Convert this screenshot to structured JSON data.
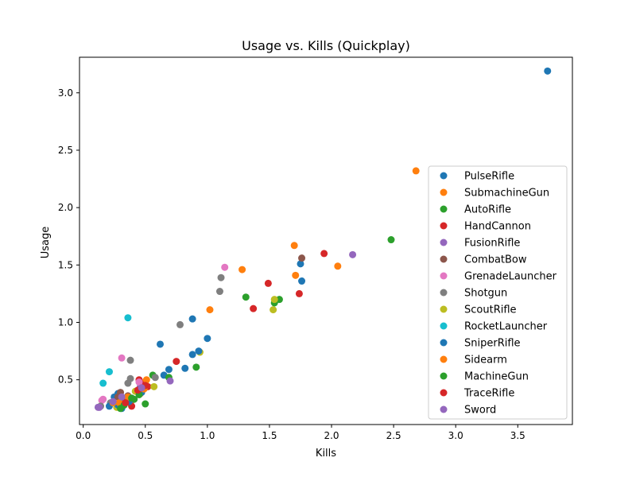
{
  "chart_data": {
    "type": "scatter",
    "title": "Usage vs. Kills (Quickplay)",
    "xlabel": "Kills",
    "ylabel": "Usage",
    "xlim": [
      -0.03,
      3.94
    ],
    "ylim": [
      0.11,
      3.31
    ],
    "xticks": [
      0.0,
      0.5,
      1.0,
      1.5,
      2.0,
      2.5,
      3.0,
      3.5
    ],
    "xtick_labels": [
      "0.0",
      "0.5",
      "1.0",
      "1.5",
      "2.0",
      "2.5",
      "3.0",
      "3.5"
    ],
    "yticks": [
      0.5,
      1.0,
      1.5,
      2.0,
      2.5,
      3.0
    ],
    "ytick_labels": [
      "0.5",
      "1.0",
      "1.5",
      "2.0",
      "2.5",
      "3.0"
    ],
    "grid": false,
    "legend_position": "lower-right",
    "series": [
      {
        "name": "PulseRifle",
        "color": "#1f77b4",
        "x": [
          3.74,
          1.76,
          1.75,
          1.0,
          0.88,
          0.62,
          0.69,
          0.65,
          0.25,
          0.28,
          0.3
        ],
        "y": [
          3.19,
          1.36,
          1.51,
          0.86,
          1.03,
          0.81,
          0.59,
          0.54,
          0.35,
          0.38,
          0.3
        ]
      },
      {
        "name": "SubmachineGun",
        "color": "#ff7f0e",
        "x": [
          2.68,
          1.7,
          1.71,
          2.05,
          1.28,
          1.02,
          0.5,
          0.46,
          0.33,
          0.38
        ],
        "y": [
          2.32,
          1.67,
          1.41,
          1.49,
          1.46,
          1.11,
          0.48,
          0.38,
          0.32,
          0.3
        ]
      },
      {
        "name": "AutoRifle",
        "color": "#2ca02c",
        "x": [
          2.48,
          1.58,
          1.54,
          1.31,
          0.91,
          0.69,
          0.56,
          0.41,
          0.5
        ],
        "y": [
          1.72,
          1.2,
          1.17,
          1.22,
          0.61,
          0.52,
          0.54,
          0.33,
          0.29
        ]
      },
      {
        "name": "HandCannon",
        "color": "#d62728",
        "x": [
          1.94,
          1.74,
          1.49,
          1.37,
          0.75,
          0.45,
          0.48,
          0.52,
          0.39
        ],
        "y": [
          1.6,
          1.25,
          1.34,
          1.12,
          0.66,
          0.5,
          0.46,
          0.44,
          0.27
        ]
      },
      {
        "name": "FusionRifle",
        "color": "#9467bd",
        "x": [
          2.17,
          0.7,
          0.46,
          0.12
        ],
        "y": [
          1.59,
          0.49,
          0.44,
          0.26
        ]
      },
      {
        "name": "CombatBow",
        "color": "#8c564b",
        "x": [
          1.76,
          0.36,
          0.3,
          0.28,
          0.33
        ],
        "y": [
          1.56,
          0.36,
          0.39,
          0.35,
          0.32
        ]
      },
      {
        "name": "GrenadeLauncher",
        "color": "#e377c2",
        "x": [
          1.14,
          0.31,
          0.16,
          0.15,
          0.45
        ],
        "y": [
          1.48,
          0.69,
          0.33,
          0.32,
          0.48
        ]
      },
      {
        "name": "Shotgun",
        "color": "#7f7f7f",
        "x": [
          1.11,
          1.1,
          0.78,
          0.38,
          0.38,
          0.36,
          0.58,
          0.14,
          0.22
        ],
        "y": [
          1.39,
          1.27,
          0.98,
          0.67,
          0.51,
          0.47,
          0.52,
          0.27,
          0.3
        ]
      },
      {
        "name": "ScoutRifle",
        "color": "#bcbd22",
        "x": [
          1.54,
          1.53,
          0.94,
          0.57,
          0.42,
          0.37,
          0.27,
          0.33
        ],
        "y": [
          1.2,
          1.11,
          0.74,
          0.44,
          0.4,
          0.34,
          0.26,
          0.29
        ]
      },
      {
        "name": "RocketLauncher",
        "color": "#17becf",
        "x": [
          0.36,
          0.21,
          0.16
        ],
        "y": [
          1.04,
          0.57,
          0.47
        ]
      },
      {
        "name": "SniperRifle",
        "color": "#1f77b4",
        "x": [
          0.93,
          0.88,
          0.82,
          0.47,
          0.37,
          0.28,
          0.21,
          0.31
        ],
        "y": [
          0.75,
          0.72,
          0.6,
          0.39,
          0.31,
          0.28,
          0.27,
          0.25
        ]
      },
      {
        "name": "Sidearm",
        "color": "#ff7f0e",
        "x": [
          0.51,
          0.49,
          0.44,
          0.36,
          0.29,
          0.24
        ],
        "y": [
          0.5,
          0.42,
          0.4,
          0.35,
          0.3,
          0.3
        ]
      },
      {
        "name": "MachineGun",
        "color": "#2ca02c",
        "x": [
          0.45,
          0.39,
          0.33,
          0.3
        ],
        "y": [
          0.37,
          0.34,
          0.28,
          0.25
        ]
      },
      {
        "name": "TraceRifle",
        "color": "#d62728",
        "x": [
          0.5,
          0.44,
          0.34
        ],
        "y": [
          0.45,
          0.41,
          0.3
        ]
      },
      {
        "name": "Sword",
        "color": "#9467bd",
        "x": [
          0.47,
          0.31,
          0.24,
          0.13
        ],
        "y": [
          0.43,
          0.35,
          0.31,
          0.26
        ]
      }
    ]
  }
}
